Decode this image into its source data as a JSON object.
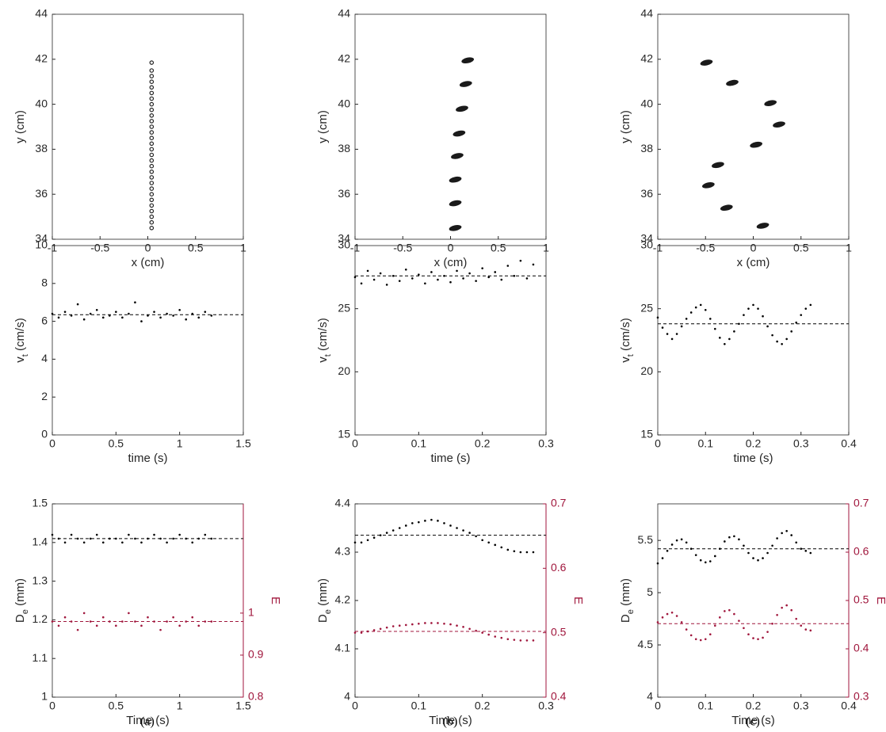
{
  "panel_labels": [
    "(a)",
    "(b)",
    "(c)"
  ],
  "chart_data": [
    {
      "type": "scatter",
      "xlabel": "x (cm)",
      "ylabel": [
        "y (cm)"
      ],
      "xlim": [
        -1,
        1
      ],
      "ylim": [
        34,
        44
      ],
      "xticks": [
        -1,
        -0.5,
        0,
        0.5,
        1
      ],
      "yticks": [
        34,
        36,
        38,
        40,
        42,
        44
      ],
      "series": [
        {
          "color": "#222222",
          "marker": "circle",
          "x": [
            0.04,
            0.04,
            0.04,
            0.04,
            0.04,
            0.04,
            0.04,
            0.04,
            0.04,
            0.04,
            0.04,
            0.04,
            0.04,
            0.04,
            0.04,
            0.04,
            0.04,
            0.04,
            0.04,
            0.04,
            0.04,
            0.04,
            0.04,
            0.04,
            0.04,
            0.04,
            0.04,
            0.04,
            0.04,
            0.04
          ],
          "values": [
            34.5,
            34.75,
            35,
            35.25,
            35.5,
            35.75,
            36,
            36.25,
            36.5,
            36.75,
            37,
            37.25,
            37.5,
            37.75,
            38,
            38.25,
            38.5,
            38.75,
            39,
            39.25,
            39.5,
            39.75,
            40,
            40.25,
            40.5,
            40.75,
            41,
            41.25,
            41.5,
            41.85
          ]
        }
      ]
    },
    {
      "type": "scatter",
      "xlabel": "x (cm)",
      "ylabel": [
        "y (cm)"
      ],
      "xlim": [
        -1,
        1
      ],
      "ylim": [
        34,
        44
      ],
      "xticks": [
        -1,
        -0.5,
        0,
        0.5,
        1
      ],
      "yticks": [
        34,
        36,
        38,
        40,
        42,
        44
      ],
      "series": [
        {
          "color": "#1a1a1a",
          "marker": "ellipse",
          "x": [
            0.05,
            0.05,
            0.05,
            0.07,
            0.09,
            0.12,
            0.16,
            0.18
          ],
          "values": [
            34.5,
            35.6,
            36.65,
            37.7,
            38.7,
            39.8,
            40.9,
            41.95
          ]
        }
      ]
    },
    {
      "type": "scatter",
      "xlabel": "x (cm)",
      "ylabel": [
        "y (cm)"
      ],
      "xlim": [
        -1,
        1
      ],
      "ylim": [
        34,
        44
      ],
      "xticks": [
        -1,
        -0.5,
        0,
        0.5,
        1
      ],
      "yticks": [
        34,
        36,
        38,
        40,
        42,
        44
      ],
      "series": [
        {
          "color": "#1a1a1a",
          "marker": "ellipse",
          "x": [
            0.1,
            -0.28,
            -0.47,
            -0.37,
            0.03,
            0.27,
            0.18,
            -0.22,
            -0.49
          ],
          "values": [
            34.6,
            35.4,
            36.4,
            37.3,
            38.2,
            39.1,
            40.05,
            40.95,
            41.85
          ]
        }
      ]
    },
    {
      "type": "scatter",
      "xlabel": "time (s)",
      "ylabel": [
        "v",
        "t",
        " (cm/s)"
      ],
      "xlim": [
        0,
        1.5
      ],
      "ylim": [
        0,
        10
      ],
      "xticks": [
        0,
        0.5,
        1,
        1.5
      ],
      "yticks": [
        0,
        2,
        4,
        6,
        8,
        10
      ],
      "series": [
        {
          "color": "#000000",
          "marker": "dot",
          "hline": 6.35,
          "x": [
            0,
            0.05,
            0.1,
            0.15,
            0.2,
            0.25,
            0.3,
            0.35,
            0.4,
            0.45,
            0.5,
            0.55,
            0.6,
            0.65,
            0.7,
            0.75,
            0.8,
            0.85,
            0.9,
            0.95,
            1,
            1.05,
            1.1,
            1.15,
            1.2,
            1.25
          ],
          "values": [
            6.4,
            6.2,
            6.5,
            6.3,
            6.9,
            6.1,
            6.4,
            6.6,
            6.2,
            6.3,
            6.5,
            6.2,
            6.4,
            7.0,
            6.0,
            6.3,
            6.5,
            6.2,
            6.4,
            6.3,
            6.6,
            6.1,
            6.4,
            6.2,
            6.5,
            6.3
          ]
        }
      ]
    },
    {
      "type": "scatter",
      "xlabel": "time (s)",
      "ylabel": [
        "v",
        "t",
        " (cm/s)"
      ],
      "xlim": [
        0,
        0.3
      ],
      "ylim": [
        15,
        30
      ],
      "xticks": [
        0,
        0.1,
        0.2,
        0.3
      ],
      "yticks": [
        15,
        20,
        25,
        30
      ],
      "series": [
        {
          "color": "#000000",
          "marker": "dot",
          "hline": 27.6,
          "x": [
            0,
            0.01,
            0.02,
            0.03,
            0.04,
            0.05,
            0.06,
            0.07,
            0.08,
            0.09,
            0.1,
            0.11,
            0.12,
            0.13,
            0.14,
            0.15,
            0.16,
            0.17,
            0.18,
            0.19,
            0.2,
            0.21,
            0.22,
            0.23,
            0.24,
            0.25,
            0.26,
            0.27,
            0.28
          ],
          "values": [
            27.5,
            27.0,
            28.0,
            27.3,
            27.8,
            26.9,
            27.6,
            27.2,
            28.1,
            27.4,
            27.7,
            27.0,
            27.9,
            27.3,
            27.6,
            27.1,
            28.0,
            27.4,
            27.8,
            27.2,
            28.2,
            27.5,
            27.9,
            27.3,
            28.4,
            27.6,
            28.8,
            27.4,
            28.5
          ]
        }
      ]
    },
    {
      "type": "scatter",
      "xlabel": "time (s)",
      "ylabel": [
        "v",
        "t",
        " (cm/s)"
      ],
      "xlim": [
        0,
        0.4
      ],
      "ylim": [
        15,
        30
      ],
      "xticks": [
        0,
        0.1,
        0.2,
        0.3,
        0.4
      ],
      "yticks": [
        15,
        20,
        25,
        30
      ],
      "series": [
        {
          "color": "#000000",
          "marker": "dot",
          "hline": 23.8,
          "x": [
            0,
            0.01,
            0.02,
            0.03,
            0.04,
            0.05,
            0.06,
            0.07,
            0.08,
            0.09,
            0.1,
            0.11,
            0.12,
            0.13,
            0.14,
            0.15,
            0.16,
            0.17,
            0.18,
            0.19,
            0.2,
            0.21,
            0.22,
            0.23,
            0.24,
            0.25,
            0.26,
            0.27,
            0.28,
            0.29,
            0.3,
            0.31,
            0.32
          ],
          "values": [
            24.3,
            23.5,
            23.0,
            22.6,
            23.0,
            23.6,
            24.2,
            24.7,
            25.1,
            25.3,
            24.9,
            24.2,
            23.4,
            22.7,
            22.2,
            22.6,
            23.2,
            23.8,
            24.5,
            25.0,
            25.3,
            25.0,
            24.4,
            23.6,
            22.9,
            22.4,
            22.2,
            22.6,
            23.2,
            23.9,
            24.5,
            25.0,
            25.3
          ]
        }
      ]
    },
    {
      "type": "scatter",
      "xlabel": "Time (s)",
      "ylabel": [
        "D",
        "e",
        " (mm)"
      ],
      "y2label": "E",
      "xlim": [
        0,
        1.5
      ],
      "ylim": [
        1,
        1.5
      ],
      "y2lim": [
        0.8,
        1.26
      ],
      "xticks": [
        0,
        0.5,
        1,
        1.5
      ],
      "yticks": [
        1,
        1.1,
        1.2,
        1.3,
        1.4,
        1.5
      ],
      "y2ticks": [
        0.8,
        0.9,
        1
      ],
      "y2color": "#a0163c",
      "series": [
        {
          "color": "#000000",
          "marker": "dot",
          "hline": 1.41,
          "x": [
            0,
            0.05,
            0.1,
            0.15,
            0.2,
            0.25,
            0.3,
            0.35,
            0.4,
            0.45,
            0.5,
            0.55,
            0.6,
            0.65,
            0.7,
            0.75,
            0.8,
            0.85,
            0.9,
            0.95,
            1,
            1.05,
            1.1,
            1.15,
            1.2,
            1.25
          ],
          "values": [
            1.42,
            1.41,
            1.4,
            1.42,
            1.41,
            1.4,
            1.41,
            1.42,
            1.4,
            1.41,
            1.41,
            1.4,
            1.42,
            1.41,
            1.4,
            1.41,
            1.42,
            1.41,
            1.4,
            1.41,
            1.42,
            1.41,
            1.4,
            1.41,
            1.42,
            1.41
          ]
        },
        {
          "color": "#a0163c",
          "marker": "dot",
          "axis": "y2",
          "hline": 0.98,
          "x": [
            0,
            0.05,
            0.1,
            0.15,
            0.2,
            0.25,
            0.3,
            0.35,
            0.4,
            0.45,
            0.5,
            0.55,
            0.6,
            0.65,
            0.7,
            0.75,
            0.8,
            0.85,
            0.9,
            0.95,
            1,
            1.05,
            1.1,
            1.15,
            1.2,
            1.25
          ],
          "values": [
            0.98,
            0.97,
            0.99,
            0.98,
            0.96,
            1.0,
            0.98,
            0.97,
            0.99,
            0.98,
            0.97,
            0.98,
            1.0,
            0.98,
            0.97,
            0.99,
            0.98,
            0.96,
            0.98,
            0.99,
            0.97,
            0.98,
            0.99,
            0.97,
            0.98,
            0.98
          ]
        }
      ]
    },
    {
      "type": "scatter",
      "xlabel": "Time (s)",
      "ylabel": [
        "D",
        "e",
        " (mm)"
      ],
      "y2label": "E",
      "xlim": [
        0,
        0.3
      ],
      "ylim": [
        4,
        4.4
      ],
      "y2lim": [
        0.4,
        0.7
      ],
      "xticks": [
        0,
        0.1,
        0.2,
        0.3
      ],
      "yticks": [
        4,
        4.1,
        4.2,
        4.3,
        4.4
      ],
      "y2ticks": [
        0.4,
        0.5,
        0.6,
        0.7
      ],
      "y2color": "#a0163c",
      "series": [
        {
          "color": "#000000",
          "marker": "dot",
          "hline": 4.335,
          "x": [
            0,
            0.01,
            0.02,
            0.03,
            0.04,
            0.05,
            0.06,
            0.07,
            0.08,
            0.09,
            0.1,
            0.11,
            0.12,
            0.13,
            0.14,
            0.15,
            0.16,
            0.17,
            0.18,
            0.19,
            0.2,
            0.21,
            0.22,
            0.23,
            0.24,
            0.25,
            0.26,
            0.27,
            0.28
          ],
          "values": [
            4.32,
            4.32,
            4.325,
            4.33,
            4.335,
            4.34,
            4.345,
            4.35,
            4.355,
            4.36,
            4.362,
            4.365,
            4.367,
            4.365,
            4.36,
            4.355,
            4.35,
            4.345,
            4.34,
            4.333,
            4.325,
            4.32,
            4.315,
            4.31,
            4.305,
            4.302,
            4.3,
            4.3,
            4.3
          ]
        },
        {
          "color": "#a0163c",
          "marker": "dot",
          "axis": "y2",
          "hline": 0.502,
          "x": [
            0,
            0.01,
            0.02,
            0.03,
            0.04,
            0.05,
            0.06,
            0.07,
            0.08,
            0.09,
            0.1,
            0.11,
            0.12,
            0.13,
            0.14,
            0.15,
            0.16,
            0.17,
            0.18,
            0.19,
            0.2,
            0.21,
            0.22,
            0.23,
            0.24,
            0.25,
            0.26,
            0.27,
            0.28
          ],
          "values": [
            0.5,
            0.5,
            0.502,
            0.504,
            0.506,
            0.508,
            0.51,
            0.511,
            0.512,
            0.513,
            0.514,
            0.515,
            0.515,
            0.515,
            0.514,
            0.513,
            0.511,
            0.509,
            0.506,
            0.503,
            0.5,
            0.497,
            0.494,
            0.492,
            0.49,
            0.489,
            0.488,
            0.488,
            0.488
          ]
        }
      ]
    },
    {
      "type": "scatter",
      "xlabel": "Time (s)",
      "ylabel": [
        "D",
        "e",
        " (mm)"
      ],
      "y2label": "E",
      "xlim": [
        0,
        0.4
      ],
      "ylim": [
        4,
        5.85
      ],
      "y2lim": [
        0.3,
        0.7
      ],
      "xticks": [
        0,
        0.1,
        0.2,
        0.3,
        0.4
      ],
      "yticks": [
        4,
        4.5,
        5,
        5.5
      ],
      "y2ticks": [
        0.3,
        0.4,
        0.5,
        0.6,
        0.7
      ],
      "y2color": "#a0163c",
      "series": [
        {
          "color": "#000000",
          "marker": "dot",
          "hline": 5.42,
          "x": [
            0,
            0.01,
            0.02,
            0.03,
            0.04,
            0.05,
            0.06,
            0.07,
            0.08,
            0.09,
            0.1,
            0.11,
            0.12,
            0.13,
            0.14,
            0.15,
            0.16,
            0.17,
            0.18,
            0.19,
            0.2,
            0.21,
            0.22,
            0.23,
            0.24,
            0.25,
            0.26,
            0.27,
            0.28,
            0.29,
            0.3,
            0.31,
            0.32
          ],
          "values": [
            5.28,
            5.33,
            5.4,
            5.46,
            5.5,
            5.51,
            5.48,
            5.42,
            5.36,
            5.31,
            5.29,
            5.3,
            5.35,
            5.42,
            5.49,
            5.53,
            5.54,
            5.51,
            5.45,
            5.38,
            5.33,
            5.31,
            5.33,
            5.38,
            5.45,
            5.52,
            5.57,
            5.59,
            5.55,
            5.48,
            5.42,
            5.4,
            5.38
          ]
        },
        {
          "color": "#a0163c",
          "marker": "dot",
          "axis": "y2",
          "hline": 0.452,
          "x": [
            0,
            0.01,
            0.02,
            0.03,
            0.04,
            0.05,
            0.06,
            0.07,
            0.08,
            0.09,
            0.1,
            0.11,
            0.12,
            0.13,
            0.14,
            0.15,
            0.16,
            0.17,
            0.18,
            0.19,
            0.2,
            0.21,
            0.22,
            0.23,
            0.24,
            0.25,
            0.26,
            0.27,
            0.28,
            0.29,
            0.3,
            0.31,
            0.32
          ],
          "values": [
            0.455,
            0.465,
            0.472,
            0.475,
            0.468,
            0.455,
            0.44,
            0.428,
            0.42,
            0.418,
            0.42,
            0.43,
            0.448,
            0.465,
            0.478,
            0.48,
            0.472,
            0.458,
            0.443,
            0.43,
            0.422,
            0.42,
            0.423,
            0.435,
            0.452,
            0.47,
            0.485,
            0.49,
            0.48,
            0.462,
            0.448,
            0.44,
            0.438
          ]
        }
      ]
    }
  ]
}
